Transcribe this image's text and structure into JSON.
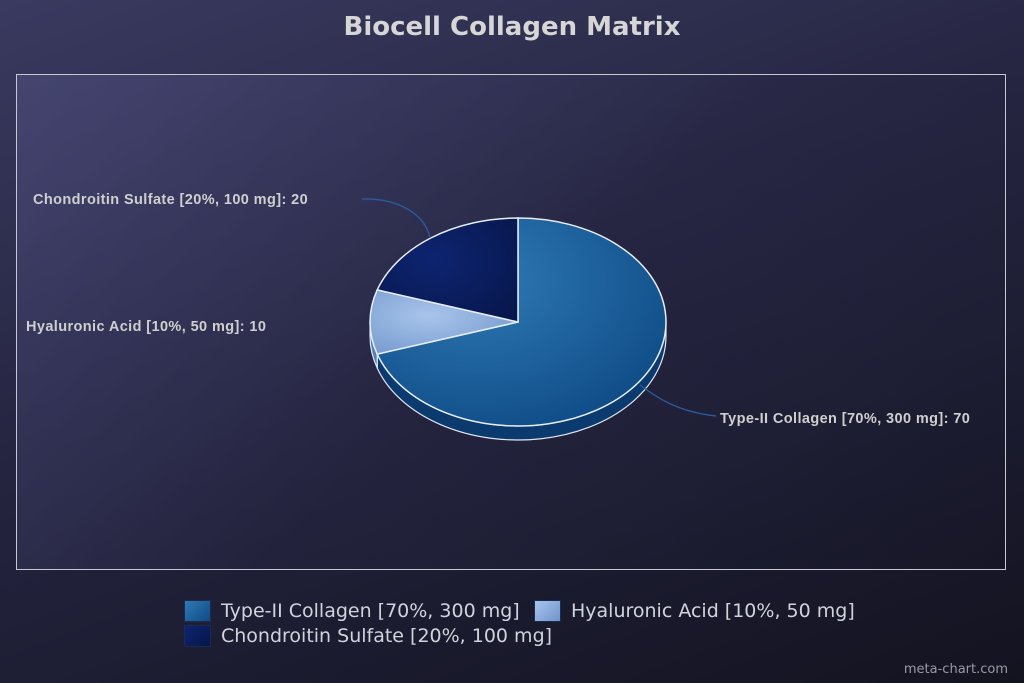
{
  "colors": {
    "type_ii": "#0e4a85",
    "hyaluronic": "#7fa5d8",
    "chondroitin": "#0a1c5c",
    "label": "#cfcfcf",
    "leader": "#2a5a9a",
    "frame": "#c8c8d0"
  },
  "chart_data": {
    "type": "pie",
    "title": "Biocell Collagen Matrix",
    "slices": [
      {
        "name": "Type-II Collagen [70%, 300 mg]",
        "value": 70,
        "label": "Type-II Collagen [70%, 300 mg]: 70",
        "color": "#0e4a85"
      },
      {
        "name": "Hyaluronic Acid [10%, 50 mg]",
        "value": 10,
        "label": "Hyaluronic Acid [10%, 50 mg]: 10",
        "color": "#7fa5d8"
      },
      {
        "name": "Chondroitin Sulfate [20%, 100 mg]",
        "value": 20,
        "label": "Chondroitin Sulfate [20%, 100 mg]: 20",
        "color": "#0a1c5c"
      }
    ],
    "legend": [
      "Type-II Collagen [70%, 300 mg]",
      "Hyaluronic Acid [10%, 50 mg]",
      "Chondroitin Sulfate [20%, 100 mg]"
    ],
    "legend_position": "bottom",
    "grid": false
  },
  "credit": "meta-chart.com"
}
